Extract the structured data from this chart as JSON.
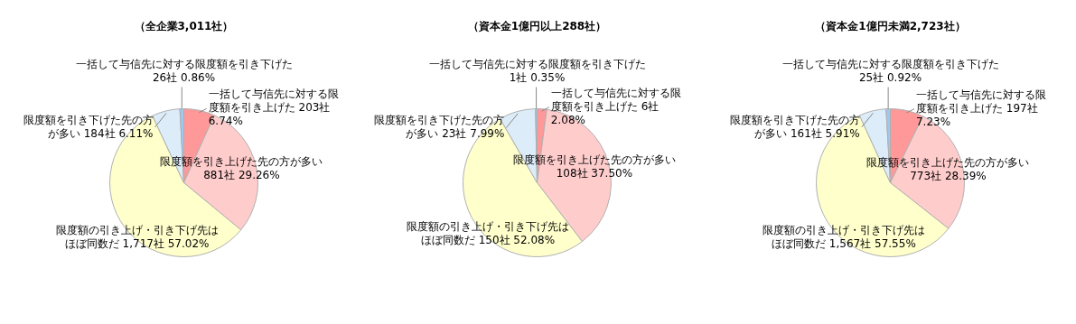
{
  "chart_data": [
    {
      "type": "pie",
      "title": "（全企業3,011社）",
      "categories": [
        "一括して与信先に対する限度額を引き上げた",
        "限度額を引き上げた先の方が多い",
        "限度額の引き上げ・引き下げ先はほぼ同数だ",
        "限度額を引き下げた先の方が多い",
        "一括して与信先に対する限度額を引き下げた"
      ],
      "values": [
        203,
        881,
        1717,
        184,
        26
      ],
      "value_labels": [
        "203社 6.74%",
        "881社 29.26%",
        "1,717社 57.02%",
        "184社 6.11%",
        "26社 0.86%"
      ],
      "colors": [
        "#ff9999",
        "#ffcccc",
        "#ffffcc",
        "#dcecf8",
        "#9ec8f0"
      ]
    },
    {
      "type": "pie",
      "title": "（資本金1億円以上288社）",
      "categories": [
        "一括して与信先に対する限度額を引き上げた",
        "限度額を引き上げた先の方が多い",
        "限度額の引き上げ・引き下げ先はほぼ同数だ",
        "限度額を引き下げた先の方が多い",
        "一括して与信先に対する限度額を引き下げた"
      ],
      "values": [
        6,
        108,
        150,
        23,
        1
      ],
      "value_labels": [
        "6社 2.08%",
        "108社 37.50%",
        "150社 52.08%",
        "23社 7.99%",
        "1社 0.35%"
      ],
      "colors": [
        "#ff9999",
        "#ffcccc",
        "#ffffcc",
        "#dcecf8",
        "#9ec8f0"
      ]
    },
    {
      "type": "pie",
      "title": "（資本金1億円未満2,723社）",
      "categories": [
        "一括して与信先に対する限度額を引き上げた",
        "限度額を引き上げた先の方が多い",
        "限度額の引き上げ・引き下げ先はほぼ同数だ",
        "限度額を引き下げた先の方が多い",
        "一括して与信先に対する限度額を引き下げた"
      ],
      "values": [
        197,
        773,
        1567,
        161,
        25
      ],
      "value_labels": [
        "197社 7.23%",
        "773社 28.39%",
        "1,567社 57.55%",
        "161社 5.91%",
        "25社 0.92%"
      ],
      "colors": [
        "#ff9999",
        "#ffcccc",
        "#ffffcc",
        "#dcecf8",
        "#9ec8f0"
      ]
    }
  ]
}
